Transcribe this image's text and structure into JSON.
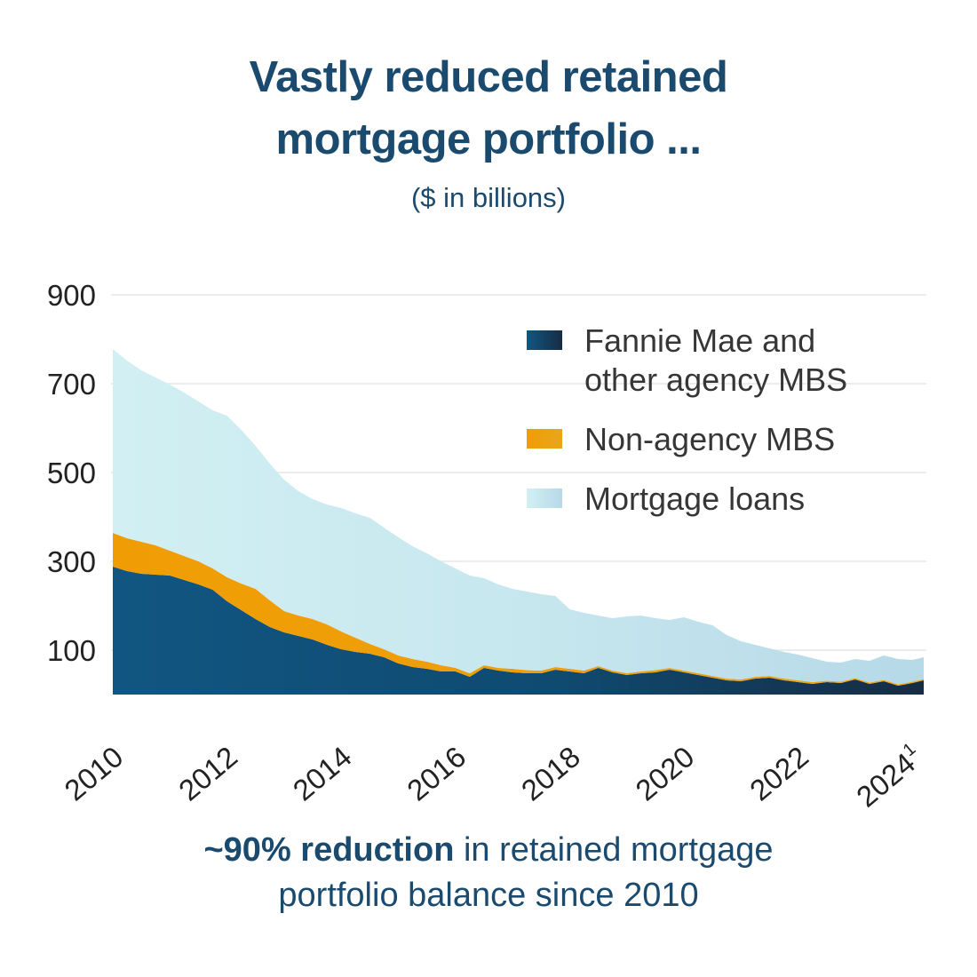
{
  "colors": {
    "heading_navy": "#1A4A6E",
    "axis_text": "#222222",
    "legend_text": "#363636",
    "gridline": "#ececec"
  },
  "title_lines": [
    "Vastly reduced retained",
    "mortgage portfolio ..."
  ],
  "subtitle": "($ in billions)",
  "legend": {
    "items": [
      {
        "label_lines": [
          "Fannie Mae and",
          "other agency MBS"
        ]
      },
      {
        "label_lines": [
          "Non-agency MBS"
        ]
      },
      {
        "label_lines": [
          "Mortgage loans"
        ]
      }
    ]
  },
  "caption": {
    "bold": "~90% reduction",
    "line1_rest": " in retained mortgage",
    "line2": "portfolio balance since 2010"
  },
  "chart_data": {
    "type": "area",
    "stacked": true,
    "title": "Vastly reduced retained mortgage portfolio ...",
    "subtitle": "($ in billions)",
    "ylabel": "$ in billions",
    "ylim": [
      0,
      900
    ],
    "xlim": [
      2010,
      2024.2
    ],
    "grid": true,
    "legend_position": "upper right",
    "y_ticks": [
      100,
      300,
      500,
      700,
      900
    ],
    "x_ticks": [
      {
        "label": "2010"
      },
      {
        "label": "2012"
      },
      {
        "label": "2014"
      },
      {
        "label": "2016"
      },
      {
        "label": "2018"
      },
      {
        "label": "2020"
      },
      {
        "label": "2022"
      },
      {
        "label": "2024",
        "superscript": "1"
      }
    ],
    "x_tick_years": [
      2010,
      2012,
      2014,
      2016,
      2018,
      2020,
      2022,
      2024
    ],
    "x": [
      2010,
      2010.25,
      2010.5,
      2010.75,
      2011,
      2011.25,
      2011.5,
      2011.75,
      2012,
      2012.25,
      2012.5,
      2012.75,
      2013,
      2013.25,
      2013.5,
      2013.75,
      2014,
      2014.25,
      2014.5,
      2014.75,
      2015,
      2015.25,
      2015.5,
      2015.75,
      2016,
      2016.25,
      2016.5,
      2016.75,
      2017,
      2017.25,
      2017.5,
      2017.75,
      2018,
      2018.25,
      2018.5,
      2018.75,
      2019,
      2019.25,
      2019.5,
      2019.75,
      2020,
      2020.25,
      2020.5,
      2020.75,
      2021,
      2021.25,
      2021.5,
      2021.75,
      2022,
      2022.25,
      2022.5,
      2022.75,
      2023,
      2023.25,
      2023.5,
      2023.75,
      2024,
      2024.2
    ],
    "series": [
      {
        "name": "Fannie Mae and other agency MBS",
        "gradient": {
          "stops": [
            "#115682",
            "#0F4A70",
            "#162C43"
          ],
          "offsets": [
            0,
            0.55,
            1
          ]
        },
        "values": [
          288,
          278,
          272,
          270,
          268,
          258,
          248,
          236,
          210,
          190,
          170,
          152,
          140,
          132,
          124,
          112,
          102,
          96,
          92,
          84,
          70,
          62,
          58,
          52,
          52,
          40,
          60,
          54,
          50,
          48,
          48,
          56,
          52,
          48,
          60,
          50,
          44,
          48,
          50,
          56,
          50,
          44,
          38,
          32,
          30,
          36,
          38,
          32,
          28,
          24,
          28,
          26,
          34,
          24,
          30,
          20,
          26,
          32
        ]
      },
      {
        "name": "Non-agency MBS",
        "gradient": {
          "stops": [
            "#F09D05",
            "#EE9F09",
            "#E8A61C"
          ],
          "offsets": [
            0,
            0.55,
            1
          ]
        },
        "values": [
          76,
          74,
          72,
          66,
          56,
          54,
          52,
          48,
          54,
          60,
          68,
          60,
          48,
          46,
          46,
          46,
          40,
          32,
          22,
          18,
          18,
          18,
          16,
          14,
          8,
          8,
          6,
          6,
          8,
          7,
          6,
          6,
          6,
          6,
          4,
          4,
          4,
          4,
          5,
          4,
          4,
          4,
          4,
          4,
          4,
          4,
          4,
          4,
          4,
          4,
          3,
          3,
          3,
          3,
          3,
          3,
          3,
          3
        ]
      },
      {
        "name": "Mortgage loans",
        "gradient": {
          "stops": [
            "#D2F0F3",
            "#C6E6EE",
            "#B6D9E8"
          ],
          "offsets": [
            0,
            0.55,
            1
          ]
        },
        "values": [
          414,
          400,
          386,
          378,
          374,
          368,
          360,
          356,
          364,
          346,
          322,
          308,
          296,
          280,
          270,
          270,
          278,
          280,
          284,
          274,
          266,
          254,
          244,
          234,
          224,
          220,
          196,
          188,
          180,
          177,
          172,
          160,
          134,
          130,
          114,
          118,
          128,
          126,
          117,
          108,
          120,
          116,
          114,
          98,
          86,
          72,
          62,
          60,
          58,
          54,
          43,
          43,
          43,
          49,
          55,
          57,
          49,
          49
        ]
      }
    ]
  }
}
